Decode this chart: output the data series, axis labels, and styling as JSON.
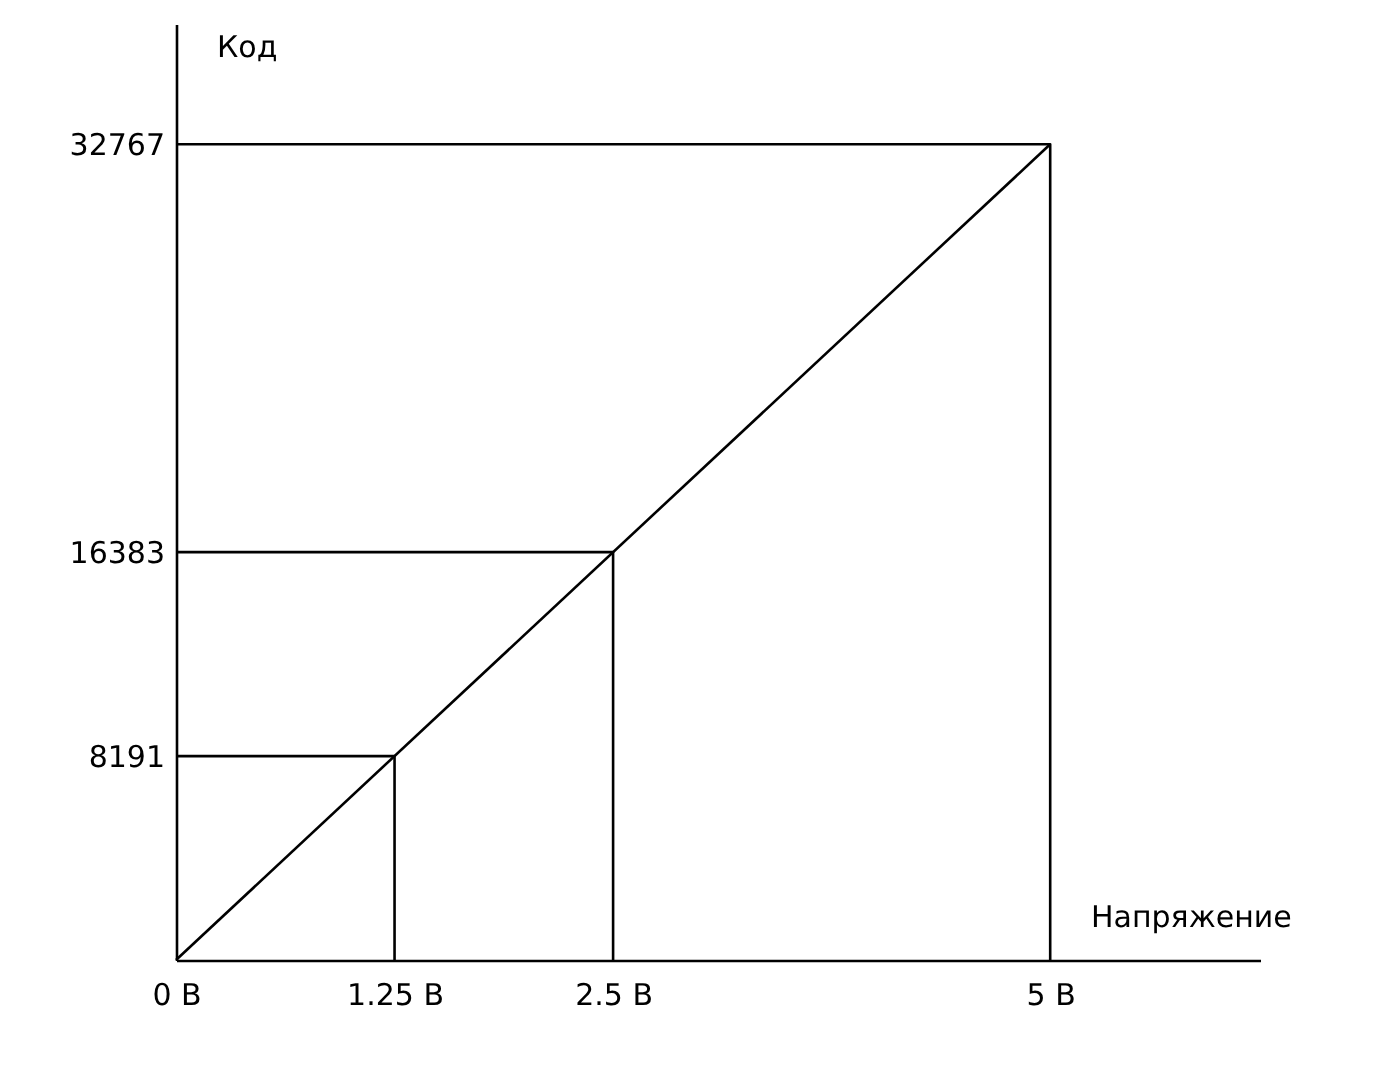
{
  "chart_data": {
    "type": "line",
    "xlabel": "Напряжение",
    "ylabel": "Код",
    "xlim": [
      0,
      6.2
    ],
    "ylim": [
      0,
      37600
    ],
    "xticks": [
      {
        "value": 0,
        "label": "0 В"
      },
      {
        "value": 1.25,
        "label": "1.25 В"
      },
      {
        "value": 2.5,
        "label": "2.5 В"
      },
      {
        "value": 5,
        "label": "5 В"
      }
    ],
    "yticks": [
      8191,
      16383,
      32767
    ],
    "grid": false,
    "marker": "none",
    "line_style": "solid",
    "series": [
      {
        "color": "#000000",
        "x": [
          0,
          5
        ],
        "values": [
          0,
          32767
        ]
      },
      {
        "color": "#000000",
        "x": [
          0,
          1.25,
          1.25
        ],
        "values": [
          8191,
          8191,
          0
        ]
      },
      {
        "color": "#000000",
        "x": [
          0,
          2.5,
          2.5
        ],
        "values": [
          16383,
          16383,
          0
        ]
      },
      {
        "color": "#000000",
        "x": [
          0,
          5,
          5
        ],
        "values": [
          32767,
          32767,
          0
        ]
      }
    ]
  }
}
